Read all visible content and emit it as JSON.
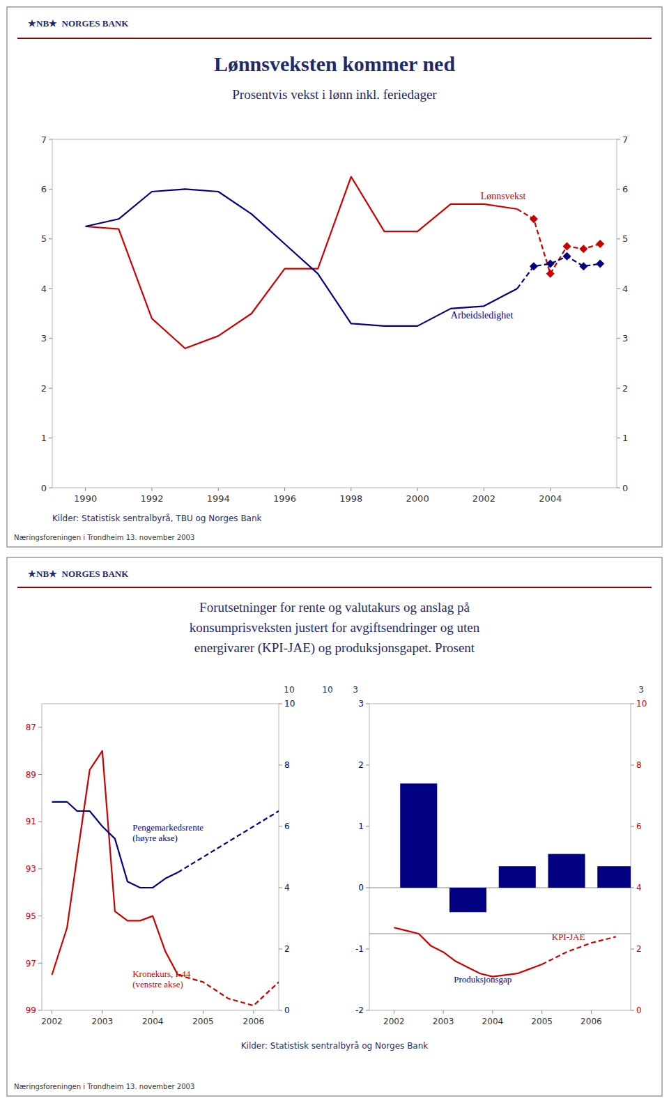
{
  "chart_data": [
    {
      "type": "line",
      "title": "Lønnsveksten kommer ned",
      "subtitle": "Prosentvis vekst i lønn inkl. feriedager",
      "annotations": [
        "★NB★  NORGES BANK",
        "Kilder: Statistisk sentralbyrå, TBU og Norges Bank",
        "Næringsforeningen i Trondheim 13. november 2003"
      ],
      "xlim": [
        1989,
        2006
      ],
      "xticks": [
        1990,
        1992,
        1994,
        1996,
        1998,
        2000,
        2002,
        2004
      ],
      "ylim": [
        0,
        7
      ],
      "yticks": [
        0,
        1,
        2,
        3,
        4,
        5,
        6,
        7
      ],
      "y2lim": [
        0,
        7
      ],
      "y2ticks": [
        0,
        1,
        2,
        3,
        4,
        5,
        6,
        7
      ],
      "grid": false,
      "series": [
        {
          "name": "Lønnsvekst",
          "color": "#cc0000",
          "line_style": "solid",
          "x": [
            1990,
            1991,
            1992,
            1993,
            1994,
            1995,
            1996,
            1997,
            1998,
            1999,
            2000,
            2001,
            2002,
            2003
          ],
          "values": [
            5.25,
            5.2,
            3.4,
            2.8,
            3.05,
            3.5,
            4.4,
            4.4,
            6.25,
            5.15,
            5.15,
            5.7,
            5.7,
            5.6
          ]
        },
        {
          "color": "#cc0000",
          "line_style": "dashed",
          "x": [
            2003,
            2003.5,
            2004,
            2004.5,
            2005,
            2005.5
          ],
          "values": [
            5.6,
            5.4,
            4.3,
            4.85,
            4.8,
            4.9
          ]
        },
        {
          "type": "scatter",
          "color": "#cc0000",
          "marker": "diamond",
          "x": [
            2003.5,
            2004,
            2004.5,
            2005,
            2005.5
          ],
          "values": [
            5.4,
            4.3,
            4.85,
            4.8,
            4.9
          ]
        },
        {
          "name": "Arbeidsledighet",
          "color": "#000080",
          "line_style": "solid",
          "x": [
            1990,
            1991,
            1992,
            1993,
            1994,
            1995,
            1996,
            1997,
            1998,
            1999,
            2000,
            2001,
            2002,
            2003
          ],
          "values": [
            5.25,
            5.4,
            5.95,
            6.0,
            5.95,
            5.5,
            4.9,
            4.3,
            3.3,
            3.25,
            3.25,
            3.6,
            3.65,
            4.0
          ]
        },
        {
          "color": "#000080",
          "line_style": "dashed",
          "x": [
            2003,
            2003.5,
            2004,
            2004.5,
            2005,
            2005.5
          ],
          "values": [
            4.0,
            4.45,
            4.5,
            4.65,
            4.45,
            4.5
          ]
        },
        {
          "type": "scatter",
          "color": "#000080",
          "marker": "diamond",
          "x": [
            2003.5,
            2004,
            2004.5,
            2005,
            2005.5
          ],
          "values": [
            4.45,
            4.5,
            4.65,
            4.45,
            4.5
          ]
        }
      ]
    },
    {
      "type": "line",
      "title": [
        "Forutsetninger for rente og valutakurs og anslag på",
        "konsumprisveksten justert for avgiftsendringer og uten",
        "energivarer (KPI-JAE) og produksjonsgapet. Prosent"
      ],
      "annotations": [
        "★NB★  NORGES BANK",
        "Næringsforeningen i Trondheim 13. november 2003",
        "10"
      ],
      "xlim": [
        2001.8,
        2006.5
      ],
      "xticks": [
        2002,
        2003,
        2004,
        2005,
        2006
      ],
      "ylim": [
        99,
        86
      ],
      "yticks": [
        87,
        89,
        91,
        93,
        95,
        97,
        99
      ],
      "y2lim": [
        0,
        10
      ],
      "y2ticks": [
        0,
        2,
        4,
        6,
        8,
        10
      ],
      "grid": false,
      "series": [
        {
          "name": "Kronekurs, I-44\n(venstre akse)",
          "color": "#cc0000",
          "line_style": "solid",
          "x": [
            2002,
            2002.3,
            2002.5,
            2002.75,
            2003.0,
            2003.25,
            2003.5,
            2003.75,
            2004.0,
            2004.25,
            2004.5
          ],
          "values": [
            97.5,
            95.5,
            92.5,
            88.8,
            88.0,
            94.8,
            95.2,
            95.2,
            95.0,
            96.5,
            97.5
          ]
        },
        {
          "color": "#cc0000",
          "line_style": "dashed",
          "x": [
            2004.5,
            2005.0,
            2005.5,
            2006.0,
            2006.5
          ],
          "values": [
            97.5,
            97.8,
            98.5,
            98.8,
            97.8
          ]
        },
        {
          "name": "Pengemarkedsrente\n(høyre akse)",
          "color": "#000080",
          "line_style": "solid",
          "axis": "y2",
          "x": [
            2002,
            2002.3,
            2002.5,
            2002.75,
            2003.0,
            2003.25,
            2003.5,
            2003.75,
            2004.0,
            2004.25,
            2004.5
          ],
          "values": [
            6.8,
            6.8,
            6.5,
            6.5,
            6.0,
            5.6,
            4.2,
            4.0,
            4.0,
            4.3,
            4.5
          ]
        },
        {
          "color": "#000080",
          "line_style": "dashed",
          "axis": "y2",
          "x": [
            2004.5,
            2005.0,
            2005.5,
            2006.0,
            2006.5
          ],
          "values": [
            4.5,
            5.0,
            5.5,
            6.0,
            6.5
          ]
        }
      ]
    },
    {
      "type": "bar",
      "annotations": [
        "Kilder: Statistisk sentralbyrå og Norges Bank",
        "3",
        "3",
        "10"
      ],
      "xlim": [
        2001.5,
        2006.8
      ],
      "xticks": [
        2002,
        2003,
        2004,
        2005,
        2006
      ],
      "ylim": [
        -2,
        3
      ],
      "yticks": [
        -2,
        -1,
        0,
        1,
        2,
        3
      ],
      "y2lim": [
        0,
        10
      ],
      "y2ticks": [
        0,
        2,
        4,
        6,
        8,
        10
      ],
      "grid": false,
      "reference_lines": [
        {
          "value": 0,
          "axis": "y",
          "color": "#888888"
        },
        {
          "value": 2.5,
          "axis": "y2",
          "color": "#888888"
        }
      ],
      "series": [
        {
          "name": "Produksjonsgap",
          "type": "bar",
          "color": "#000080",
          "x": [
            2002.5,
            2003.5,
            2004.5,
            2005.5,
            2006.5
          ],
          "values": [
            1.7,
            -0.4,
            0.35,
            0.55,
            0.35
          ]
        },
        {
          "name": "KPI-JAE",
          "type": "line",
          "color": "#cc0000",
          "line_style": "solid",
          "axis": "y2",
          "x": [
            2002,
            2002.25,
            2002.5,
            2002.75,
            2003.0,
            2003.25,
            2003.5,
            2003.75,
            2004.0,
            2004.25,
            2004.5,
            2004.75,
            2005.0
          ],
          "values": [
            2.7,
            2.6,
            2.5,
            2.1,
            1.9,
            1.6,
            1.4,
            1.2,
            1.1,
            1.15,
            1.2,
            1.35,
            1.5
          ]
        },
        {
          "type": "line",
          "color": "#cc0000",
          "line_style": "dashed",
          "axis": "y2",
          "x": [
            2005.0,
            2005.5,
            2006.0,
            2006.5
          ],
          "values": [
            1.5,
            1.9,
            2.2,
            2.4
          ]
        }
      ]
    }
  ]
}
